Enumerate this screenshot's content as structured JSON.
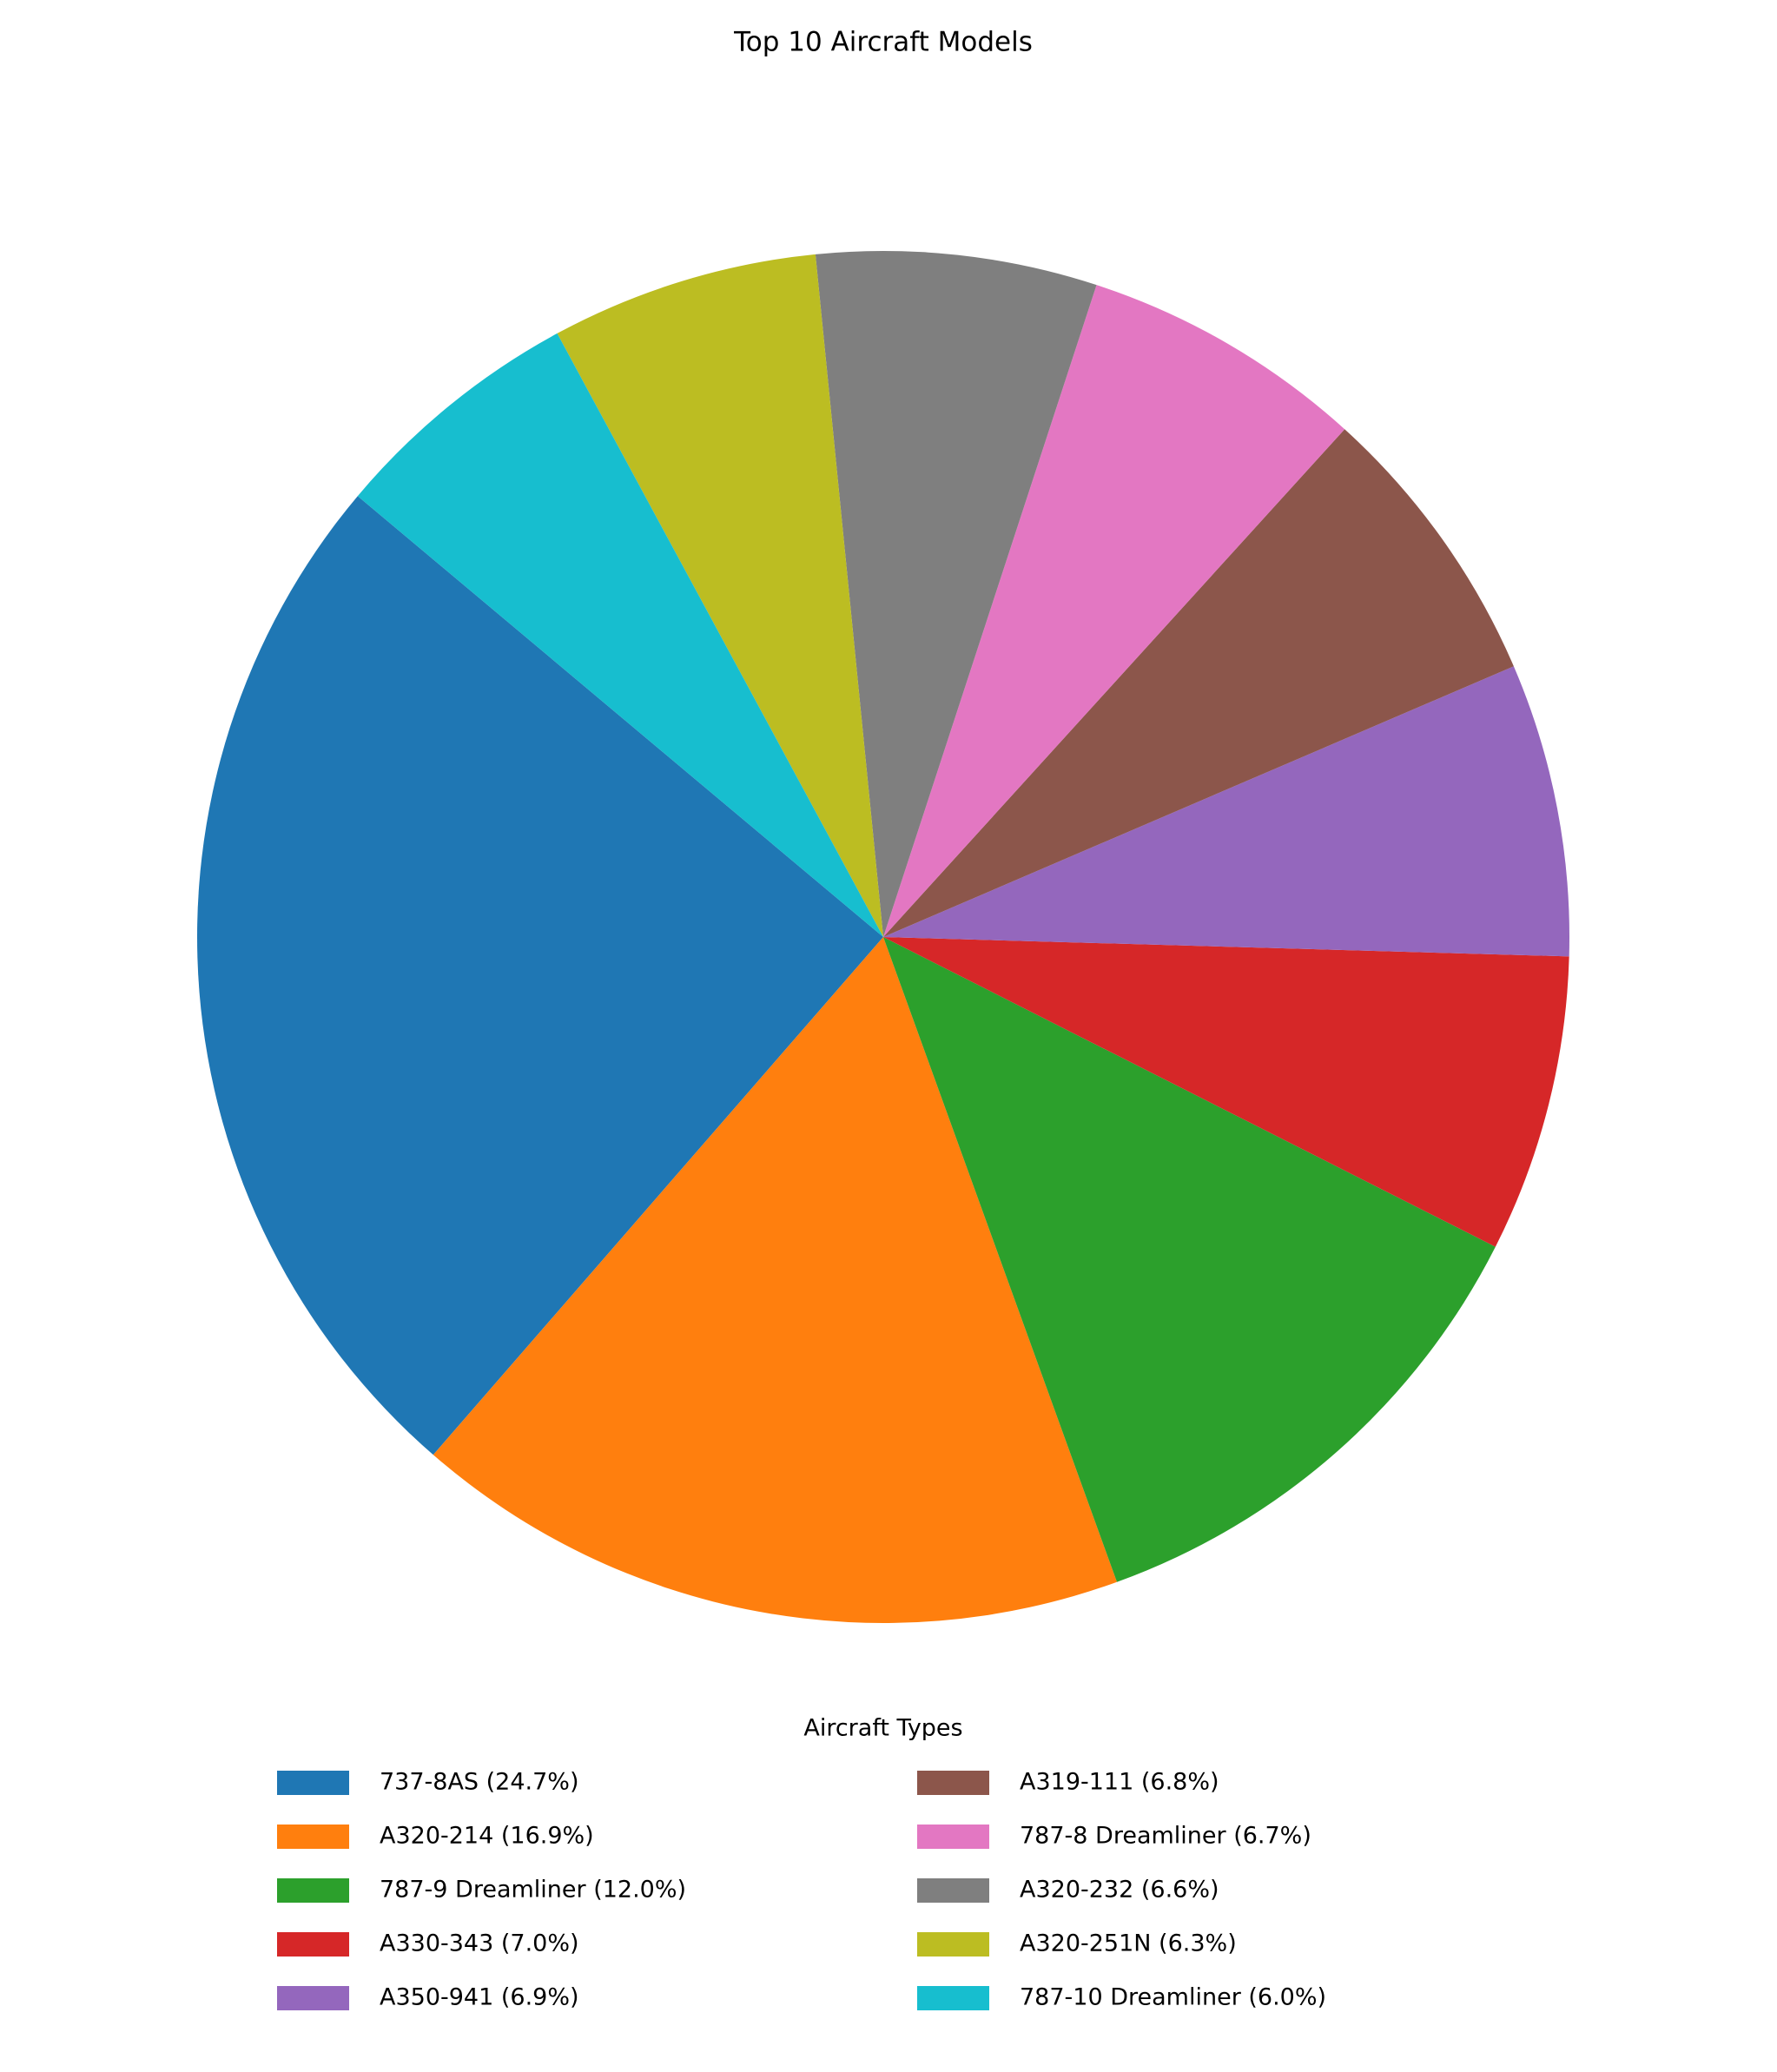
{
  "chart_data": {
    "type": "pie",
    "title": "Top 10 Aircraft Models",
    "categories": [
      "737-8AS (24.7%)",
      "A320-214 (16.9%)",
      "787-9 Dreamliner (12.0%)",
      "A330-343 (7.0%)",
      "A350-941 (6.9%)",
      "A319-111 (6.8%)",
      "787-8 Dreamliner (6.7%)",
      "A320-232 (6.6%)",
      "A320-251N (6.3%)",
      "787-10 Dreamliner (6.0%)"
    ],
    "values": [
      24.7,
      16.9,
      12.0,
      7.0,
      6.9,
      6.8,
      6.7,
      6.6,
      6.3,
      6.0
    ],
    "colors": [
      "#1f77b4",
      "#ff7f0e",
      "#2ca02c",
      "#d62728",
      "#9467bd",
      "#8c564b",
      "#e377c2",
      "#7f7f7f",
      "#bcbd22",
      "#17becf"
    ],
    "legend_title": "Aircraft Types",
    "legend": "lower center"
  }
}
